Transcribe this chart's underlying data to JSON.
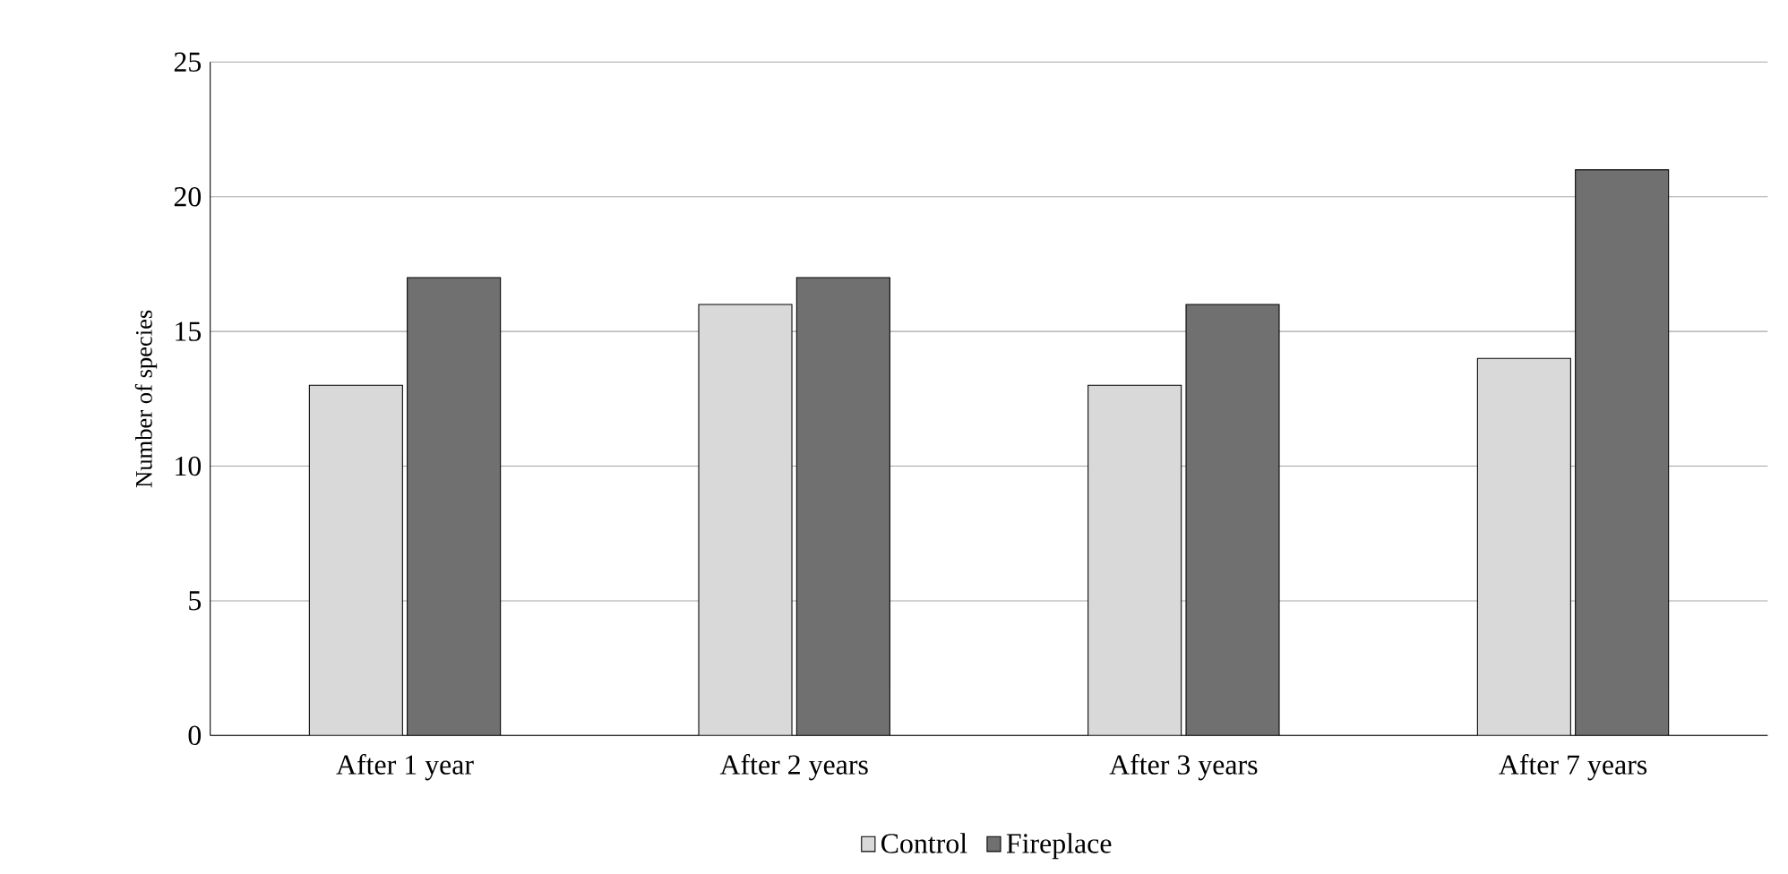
{
  "chart_data": {
    "type": "bar",
    "ylabel": "Number of species",
    "categories": [
      "After 1 year",
      "After 2 years",
      "After 3 years",
      "After 7 years"
    ],
    "series": [
      {
        "name": "Control",
        "color": "#d9d9d9",
        "values": [
          13,
          16,
          13,
          14
        ]
      },
      {
        "name": "Fireplace",
        "color": "#707070",
        "values": [
          17,
          17,
          16,
          21
        ]
      }
    ],
    "ylim": [
      0,
      25
    ],
    "yticks": [
      0,
      5,
      10,
      15,
      20,
      25
    ],
    "grid": "y",
    "legend": "bottom"
  }
}
